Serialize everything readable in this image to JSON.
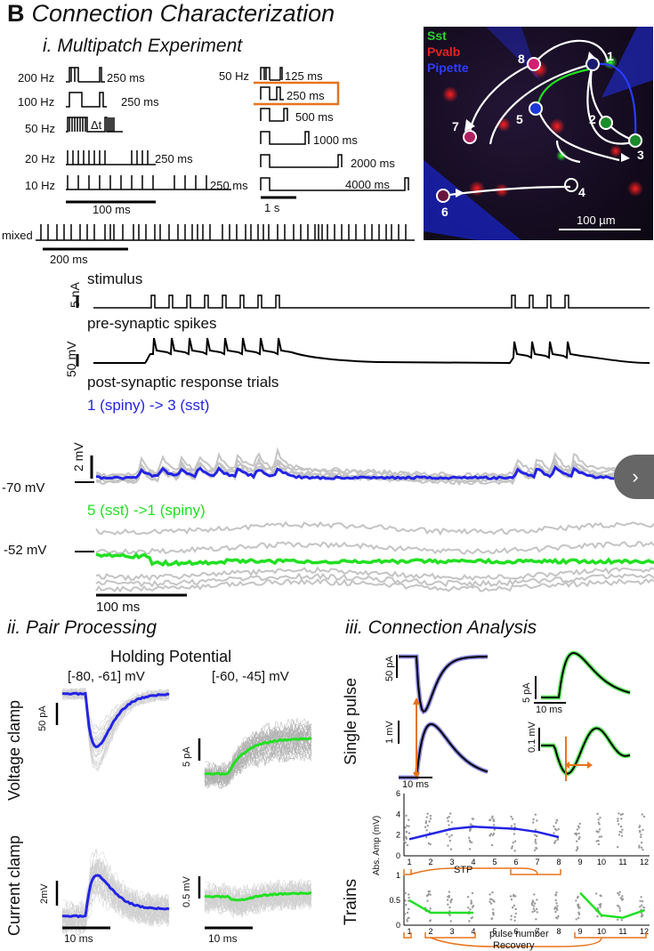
{
  "figure": {
    "panel_letter": "B",
    "title": "Connection Characterization"
  },
  "section_i": {
    "title": "i. Multipatch Experiment",
    "left_protocols": [
      {
        "freq": "200 Hz",
        "interval": "250 ms"
      },
      {
        "freq": "100 Hz",
        "interval": "250 ms"
      },
      {
        "freq": "50 Hz",
        "interval": "Δt"
      },
      {
        "freq": "20 Hz",
        "interval": "250 ms"
      },
      {
        "freq": "10 Hz",
        "interval": "250 ms"
      }
    ],
    "left_scale": "100 ms",
    "right_freq": "50 Hz",
    "right_protocols": [
      "125 ms",
      "250 ms",
      "500 ms",
      "1000 ms",
      "2000 ms",
      "4000 ms"
    ],
    "right_scale": "1 s",
    "mixed_label": "mixed",
    "mixed_scale": "200 ms",
    "micrograph": {
      "legend": [
        {
          "label": "Sst",
          "color": "#2bd42b"
        },
        {
          "label": "Pvalb",
          "color": "#e62020"
        },
        {
          "label": "Pipette",
          "color": "#2e3cff"
        }
      ],
      "cells": [
        "1",
        "2",
        "3",
        "4",
        "5",
        "6",
        "7",
        "8"
      ],
      "scale": "100 µm"
    }
  },
  "traces": {
    "stimulus_label": "stimulus",
    "stimulus_scale": "5 nA",
    "presyn_label": "pre-synaptic spikes",
    "presyn_scale": "50 mV",
    "post_label": "post-synaptic response trials",
    "pair1_label": "1 (spiny) -> 3 (sst)",
    "pair1_color": "#2323e6",
    "pair1_scale": "2 mV",
    "pair1_holding": "-70 mV",
    "pair2_label": "5 (sst) ->1 (spiny)",
    "pair2_color": "#22e022",
    "pair2_holding": "-52 mV",
    "time_scale": "100 ms"
  },
  "section_ii": {
    "title": "ii. Pair Processing",
    "header": "Holding Potential",
    "col1": "[-80, -61] mV",
    "col2": "[-60, -45] mV",
    "row1": "Voltage clamp",
    "row2": "Current clamp",
    "vc1_scale": "50 pA",
    "vc2_scale": "5 pA",
    "cc1_scale": "2mV",
    "cc2_scale": "0.5 mV",
    "time1": "10 ms",
    "time2": "10 ms"
  },
  "section_iii": {
    "title": "iii. Connection Analysis",
    "single_pulse": "Single pulse",
    "trains": "Trains",
    "sp_scales": {
      "tl": "50 pA",
      "tr": "5 pA",
      "tr_time": "10 ms",
      "bl": "1 mV",
      "bl_time": "10 ms",
      "br": "0.1 mV"
    },
    "stp_label": "STP",
    "recovery_label": "Recovery",
    "ylabel": "Abs. Amp (mV)",
    "xlabel": "pulse number"
  },
  "chart_data": [
    {
      "type": "line",
      "ylabel": "Abs. Amp (mV)",
      "x": [
        1,
        2,
        3,
        4,
        5,
        6,
        7,
        8
      ],
      "categories": [
        "1",
        "2",
        "3",
        "4",
        "5",
        "6",
        "7",
        "8",
        "9",
        "10",
        "11",
        "12"
      ],
      "ylim": [
        0,
        6
      ],
      "yticks": [
        0,
        2,
        4,
        6
      ],
      "series": [
        {
          "values": [
            1.6,
            2.1,
            2.6,
            2.8,
            2.7,
            2.6,
            2.3,
            1.8
          ],
          "color": "#2323e6"
        }
      ]
    },
    {
      "type": "line",
      "ylabel": "Abs. Amp (mV)",
      "xlabel": "pulse number",
      "categories": [
        "1",
        "2",
        "3",
        "4",
        "5",
        "6",
        "7",
        "8",
        "9",
        "10",
        "11",
        "12"
      ],
      "ylim": [
        0,
        1.0
      ],
      "yticks": [
        0,
        0.5,
        1
      ],
      "series": [
        {
          "x": [
            1,
            2,
            3,
            4
          ],
          "values": [
            0.5,
            0.25,
            0.25,
            0.25
          ],
          "color": "#22e022"
        },
        {
          "x": [
            9,
            10,
            11,
            12
          ],
          "values": [
            0.65,
            0.2,
            0.15,
            0.3
          ],
          "color": "#22e022"
        }
      ]
    }
  ]
}
